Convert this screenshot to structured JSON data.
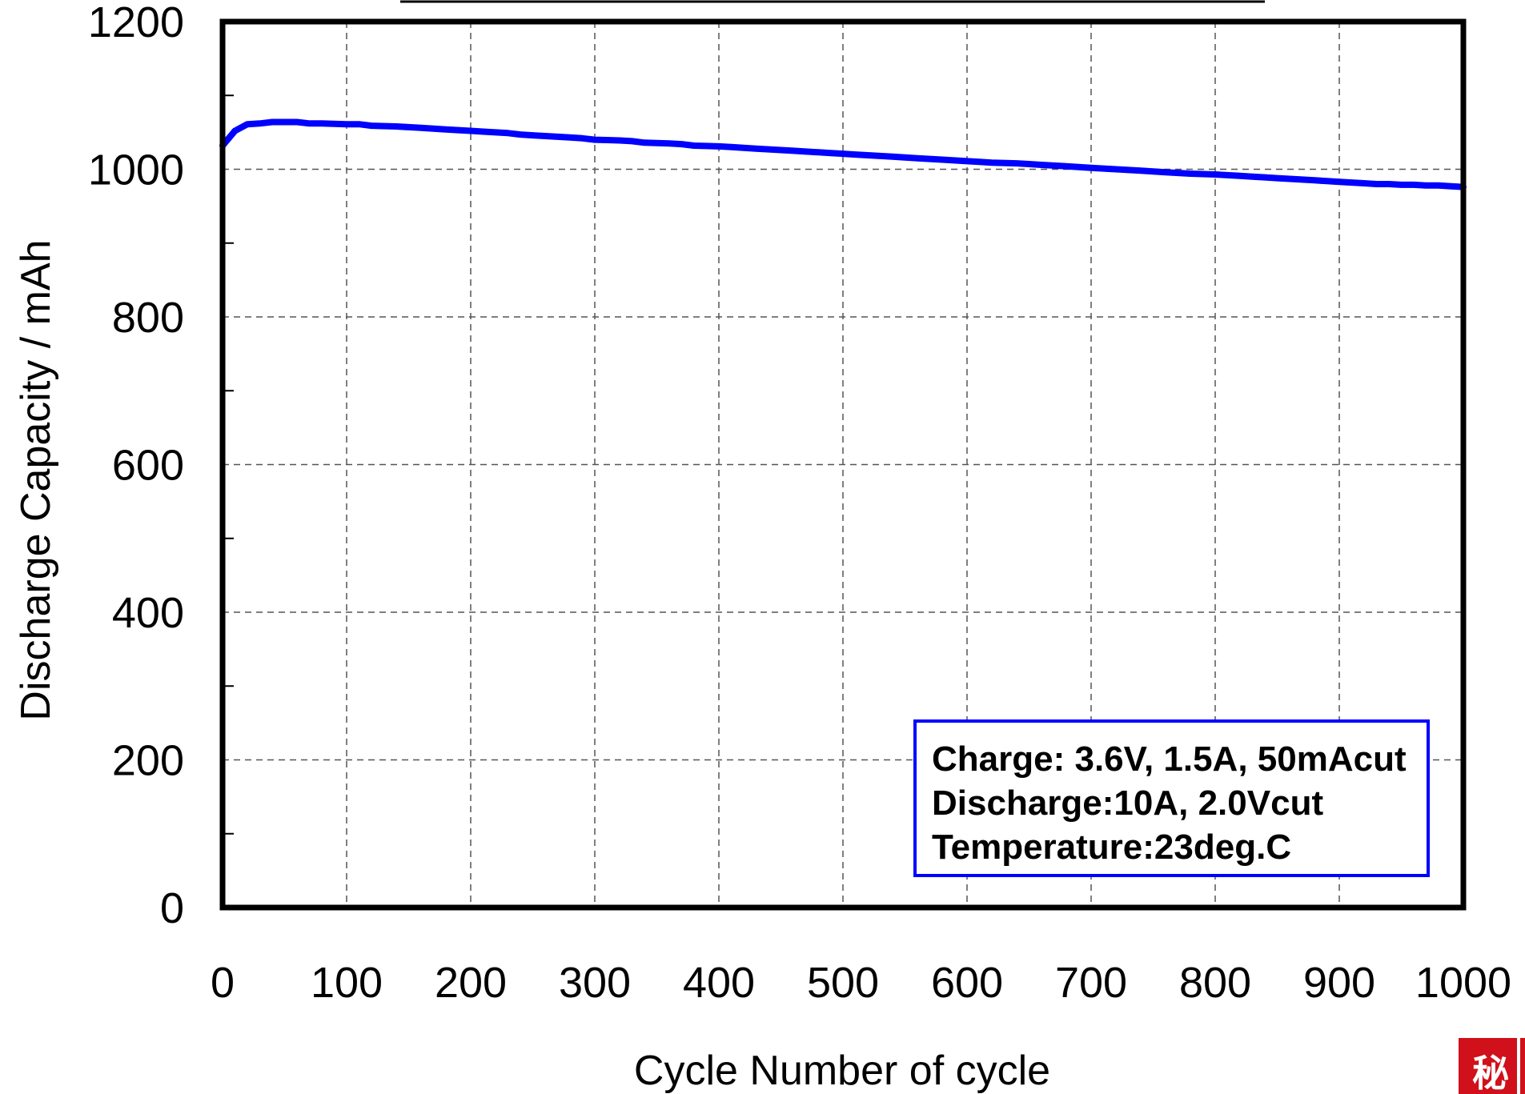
{
  "chart_data": {
    "type": "line",
    "xlabel": "Cycle Number of  cycle",
    "ylabel": "Discharge Capacity / mAh",
    "xlim": [
      0,
      1000
    ],
    "ylim": [
      0,
      1200
    ],
    "x_ticks": [
      0,
      100,
      200,
      300,
      400,
      500,
      600,
      700,
      800,
      900,
      1000
    ],
    "y_ticks": [
      0,
      200,
      400,
      600,
      800,
      1000,
      1200
    ],
    "x_tick_labels": [
      "0",
      "100",
      "200",
      "300",
      "400",
      "500",
      "600",
      "700",
      "800",
      "900",
      "1000"
    ],
    "y_tick_labels": [
      "0",
      "200",
      "400",
      "600",
      "800",
      "1000",
      "1200"
    ],
    "grid": true,
    "series": [
      {
        "color": "#0000ff",
        "x": [
          0,
          10,
          20,
          30,
          40,
          50,
          60,
          70,
          80,
          100,
          110,
          120,
          140,
          150,
          160,
          170,
          180,
          200,
          210,
          220,
          230,
          240,
          250,
          260,
          270,
          280,
          290,
          300,
          320,
          330,
          340,
          360,
          370,
          380,
          400,
          410,
          420,
          430,
          440,
          460,
          470,
          480,
          490,
          500,
          510,
          520,
          540,
          550,
          560,
          570,
          580,
          600,
          610,
          620,
          640,
          650,
          660,
          670,
          680,
          690,
          700,
          710,
          720,
          730,
          740,
          750,
          760,
          770,
          780,
          800,
          810,
          820,
          830,
          840,
          850,
          860,
          870,
          880,
          890,
          900,
          910,
          920,
          930,
          940,
          950,
          960,
          970,
          980,
          990,
          1000
        ],
        "y": [
          1032,
          1052,
          1061,
          1062,
          1064,
          1064,
          1064,
          1062,
          1062,
          1061,
          1061,
          1059,
          1058,
          1057,
          1056,
          1055,
          1054,
          1052,
          1051,
          1050,
          1049,
          1047,
          1046,
          1045,
          1044,
          1043,
          1042,
          1040,
          1039,
          1038,
          1036,
          1035,
          1034,
          1032,
          1031,
          1030,
          1029,
          1028,
          1027,
          1025,
          1024,
          1023,
          1022,
          1021,
          1020,
          1019,
          1017,
          1016,
          1015,
          1014,
          1013,
          1011,
          1010,
          1009,
          1008,
          1007,
          1006,
          1005,
          1004,
          1003,
          1002,
          1001,
          1000,
          999,
          998,
          997,
          996,
          995,
          994,
          993,
          992,
          991,
          990,
          989,
          988,
          987,
          986,
          985,
          984,
          983,
          982,
          981,
          980,
          980,
          979,
          979,
          978,
          978,
          977,
          976
        ]
      }
    ],
    "annotations": [
      "Charge: 3.6V, 1.5A, 50mAcut",
      "Discharge:10A, 2.0Vcut",
      "Temperature:23deg.C"
    ]
  },
  "stamp": {
    "text": "秘"
  },
  "colors": {
    "series": "#0000ff",
    "annotation_border": "#0000ff",
    "stamp": "#d0101a"
  }
}
